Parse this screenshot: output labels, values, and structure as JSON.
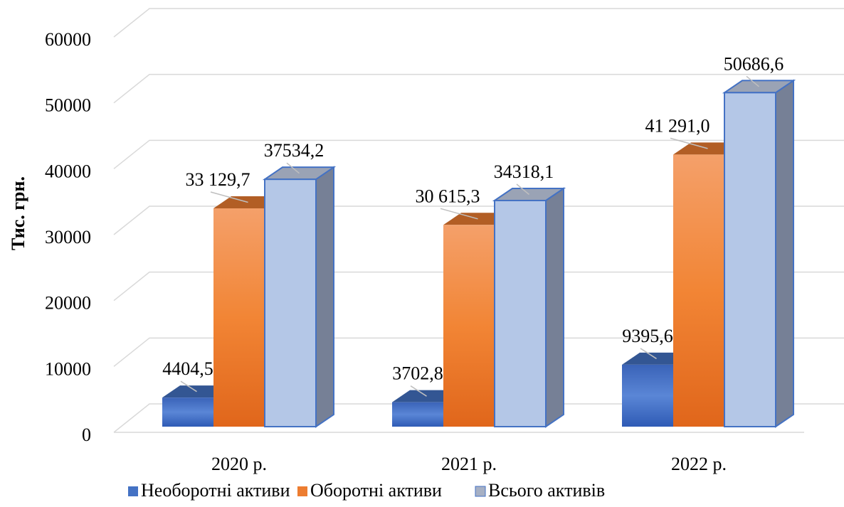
{
  "chart_data": {
    "type": "bar3d",
    "y_axis_label": "Тис. грн.",
    "categories": [
      "2020 р.",
      "2021 р.",
      "2022 р."
    ],
    "series": [
      {
        "name": "Необоротні активи",
        "color": "#4472c4",
        "values": [
          4404.5,
          3702.8,
          9395.6
        ],
        "value_labels": [
          "4404,5",
          "3702,8",
          "9395,6"
        ]
      },
      {
        "name": "Оборотні активи",
        "color": "#ed7d31",
        "values": [
          33129.7,
          30615.3,
          41291.0
        ],
        "value_labels": [
          "33 129,7",
          "30 615,3",
          "41 291,0"
        ]
      },
      {
        "name": "Всього активів",
        "color": "#b4c7e7",
        "values": [
          37534.2,
          34318.1,
          50686.6
        ],
        "value_labels": [
          "37534,2",
          "34318,1",
          "50686,6"
        ]
      }
    ],
    "ylim": [
      0,
      60000
    ],
    "yticks": [
      0,
      10000,
      20000,
      30000,
      40000,
      50000,
      60000
    ],
    "grid": true,
    "legend": "bottom"
  }
}
